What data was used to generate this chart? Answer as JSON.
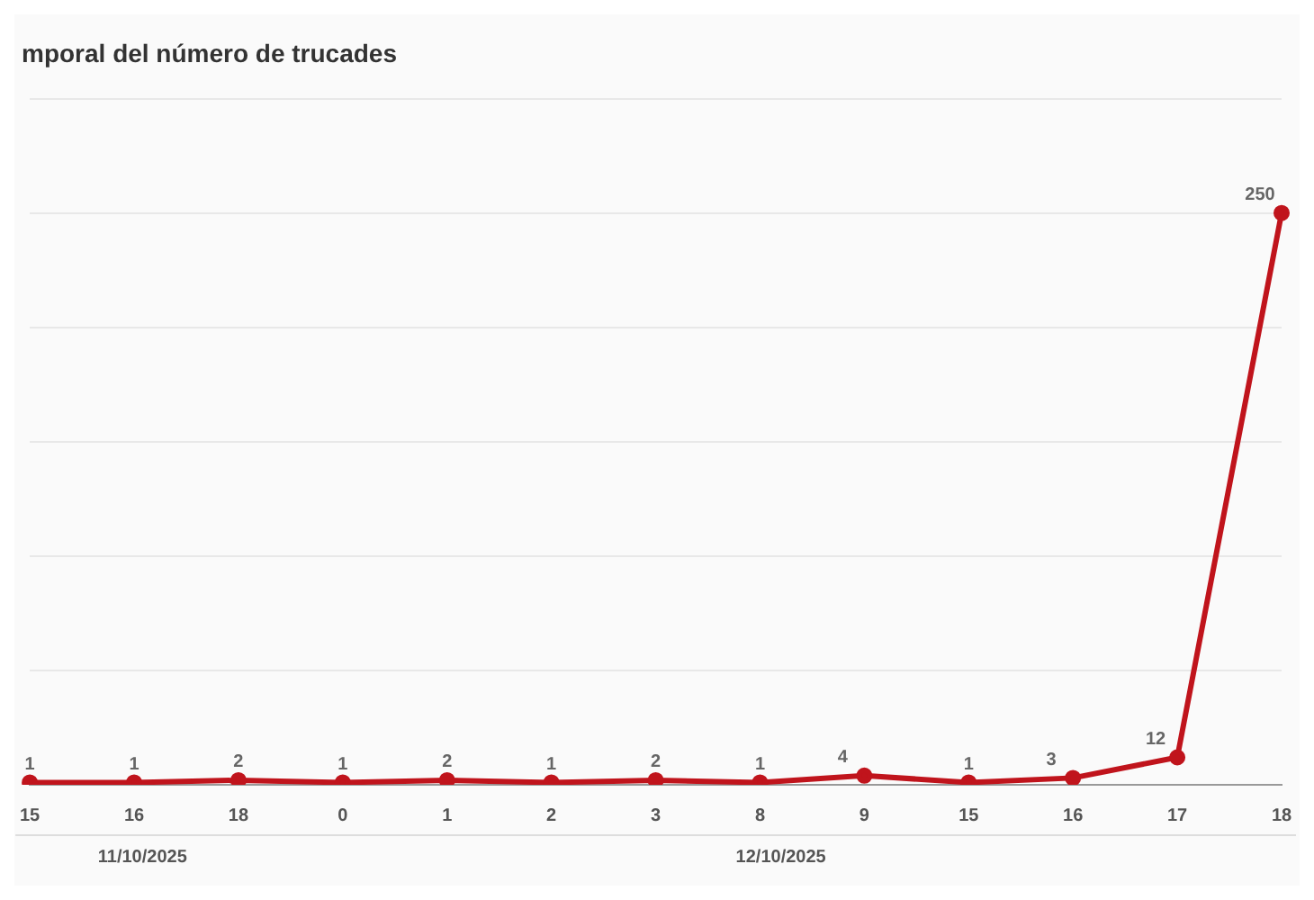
{
  "chart_data": {
    "type": "line",
    "title": "mporal del número de trucades",
    "categories": [
      "15",
      "16",
      "18",
      "0",
      "1",
      "2",
      "3",
      "8",
      "9",
      "15",
      "16",
      "17",
      "18"
    ],
    "series": [
      {
        "color": "#c0141c",
        "values": [
          1,
          1,
          2,
          1,
          2,
          1,
          2,
          1,
          4,
          1,
          3,
          12,
          250
        ]
      }
    ],
    "ylim": [
      0,
      300
    ],
    "yticks": [
      {
        "value": 0,
        "label": null
      },
      {
        "value": 50,
        "label": null
      },
      {
        "value": 100,
        "label": null
      },
      {
        "value": 150,
        "label": null
      },
      {
        "value": 200,
        "label": null
      },
      {
        "value": 250,
        "label": null
      },
      {
        "value": 300,
        "label": null
      }
    ],
    "grid": "y",
    "tick_labels": "x",
    "marker": "circle",
    "line_style": "solid",
    "data_labels": true,
    "legend": false,
    "annotations": [
      "11/10/2025",
      "12/10/2025"
    ]
  }
}
